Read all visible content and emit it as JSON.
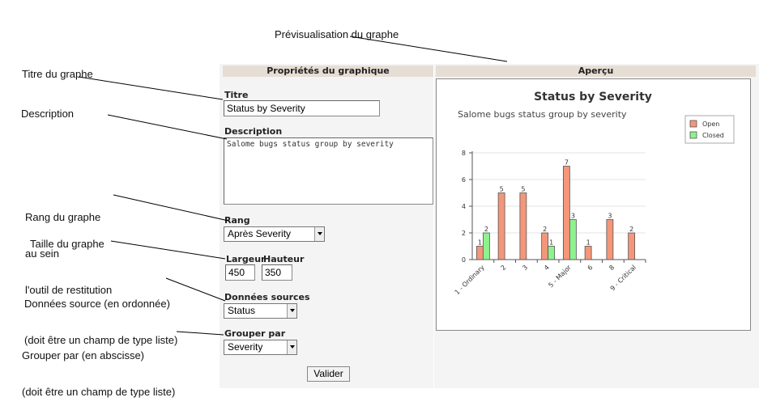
{
  "annotations": {
    "preview": "Prévisualisation du graphe",
    "title": "Titre du graphe",
    "description": "Description",
    "rank_line1": "Rang du graphe",
    "rank_line2": "au sein",
    "rank_line3": "l'outil de restitution",
    "size": "Taille du graphe",
    "source_line1": "Données source (en ordonnée)",
    "source_line2": "(doit être un champ de type liste)",
    "group_line1": "Grouper par (en abscisse)",
    "group_line2": "(doit être un champ de type liste)"
  },
  "form": {
    "header": "Propriétés du graphique",
    "title_label": "Titre",
    "title_value": "Status by Severity",
    "description_label": "Description",
    "description_value": "Salome bugs status group by severity",
    "rank_label": "Rang",
    "rank_value": "Après Severity",
    "width_label": "Largeur",
    "width_value": "450",
    "height_label": "Hauteur",
    "height_value": "350",
    "source_label": "Données sources",
    "source_value": "Status",
    "group_label": "Grouper par",
    "group_value": "Severity",
    "submit_label": "Valider"
  },
  "preview": {
    "header": "Aperçu"
  },
  "colors": {
    "open": "#f4967a",
    "closed": "#8ef28e",
    "header_bg": "#e6ddd4",
    "panel_bg": "#f4f4f4"
  },
  "chart_data": {
    "type": "bar",
    "title": "Status by Severity",
    "subtitle": "Salome bugs status group by severity",
    "categories": [
      "1 - Ordinary",
      "2",
      "3",
      "4",
      "5 - Major",
      "6",
      "8",
      "9 - Critical"
    ],
    "series": [
      {
        "name": "Open",
        "values": [
          1,
          5,
          5,
          2,
          7,
          1,
          3,
          2
        ],
        "color": "#f4967a"
      },
      {
        "name": "Closed",
        "values": [
          2,
          null,
          null,
          1,
          3,
          null,
          null,
          null
        ],
        "color": "#8ef28e"
      }
    ],
    "ylim": [
      0,
      8
    ],
    "yticks": [
      0,
      2,
      4,
      6,
      8
    ],
    "legend": "top-right",
    "grid": true
  }
}
